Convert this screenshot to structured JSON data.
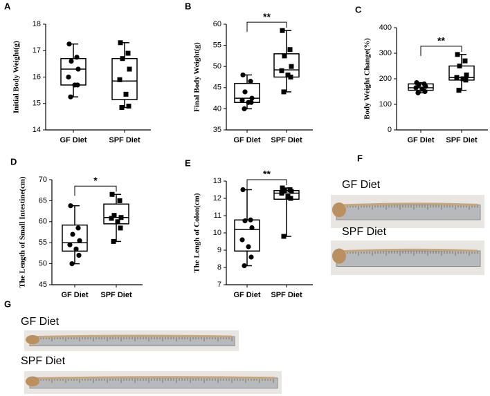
{
  "chart_data": [
    {
      "type": "box",
      "panel": "A",
      "y_label": "Initial Body Weight(g)",
      "categories": [
        "GF Diet",
        "SPF Diet"
      ],
      "ylim": [
        14,
        18
      ],
      "yticks": [
        14,
        15,
        16,
        17,
        18
      ],
      "boxes": [
        {
          "min": 15.25,
          "q1": 15.7,
          "median": 16.3,
          "q3": 16.7,
          "max": 17.25,
          "points": [
            17.25,
            16.75,
            16.6,
            16.3,
            16.0,
            15.7,
            15.7,
            15.25
          ]
        },
        {
          "min": 14.85,
          "q1": 15.15,
          "median": 15.85,
          "q3": 16.7,
          "max": 17.3,
          "points": [
            17.3,
            16.9,
            16.7,
            16.3,
            15.9,
            15.35,
            14.9,
            14.85
          ]
        }
      ]
    },
    {
      "type": "box",
      "panel": "B",
      "y_label": "Final Body Weight(g)",
      "categories": [
        "GF Diet",
        "SPF Diet"
      ],
      "ylim": [
        35,
        60
      ],
      "yticks": [
        35,
        40,
        45,
        50,
        55,
        60
      ],
      "significance": "**",
      "boxes": [
        {
          "min": 40,
          "q1": 41.5,
          "median": 42.5,
          "q3": 46,
          "max": 48,
          "points": [
            48,
            46.5,
            44,
            42.5,
            42,
            41.5,
            41.5,
            40
          ]
        },
        {
          "min": 44,
          "q1": 47.5,
          "median": 49.2,
          "q3": 53,
          "max": 58.5,
          "points": [
            58.5,
            54,
            52.5,
            50,
            49,
            48,
            47.5,
            44
          ]
        }
      ]
    },
    {
      "type": "box",
      "panel": "C",
      "y_label": "Body Weight Change(%)",
      "categories": [
        "GF Diet",
        "SPF Diet"
      ],
      "ylim": [
        0,
        400
      ],
      "yticks": [
        0,
        100,
        200,
        300,
        400
      ],
      "significance": "**",
      "boxes": [
        {
          "min": 145,
          "q1": 155,
          "median": 165,
          "q3": 180,
          "max": 185,
          "points": [
            185,
            180,
            175,
            170,
            165,
            160,
            150,
            145
          ]
        },
        {
          "min": 155,
          "q1": 195,
          "median": 205,
          "q3": 250,
          "max": 295,
          "points": [
            295,
            270,
            250,
            215,
            205,
            200,
            195,
            155
          ]
        }
      ]
    },
    {
      "type": "box",
      "panel": "D",
      "y_label": "The Length of Small Intestine(cm)",
      "categories": [
        "GF Diet",
        "SPF Diet"
      ],
      "ylim": [
        45,
        70
      ],
      "yticks": [
        45,
        50,
        55,
        60,
        65,
        70
      ],
      "significance": "*",
      "boxes": [
        {
          "min": 50,
          "q1": 53,
          "median": 55,
          "q3": 59.2,
          "max": 63.8,
          "points": [
            63.8,
            58.5,
            57,
            55.5,
            54.5,
            53.5,
            52,
            50
          ]
        },
        {
          "min": 55.3,
          "q1": 59.5,
          "median": 61,
          "q3": 64.2,
          "max": 66.5,
          "points": [
            66.5,
            65,
            61.5,
            61,
            60.8,
            60,
            58.5,
            55.3
          ]
        }
      ]
    },
    {
      "type": "box",
      "panel": "E",
      "y_label": "The Lengh of Colon(cm)",
      "categories": [
        "GF Diet",
        "SPF Diet"
      ],
      "ylim": [
        7,
        13
      ],
      "yticks": [
        7,
        8,
        9,
        10,
        11,
        12,
        13
      ],
      "significance": "**",
      "boxes": [
        {
          "min": 8.1,
          "q1": 8.95,
          "median": 10.2,
          "q3": 10.75,
          "max": 12.5,
          "points": [
            12.5,
            10.75,
            10.7,
            10.3,
            9.6,
            9.2,
            8.6,
            8.1
          ]
        },
        {
          "min": 9.8,
          "q1": 11.95,
          "median": 12.3,
          "q3": 12.45,
          "max": 12.6,
          "points": [
            12.6,
            12.5,
            12.45,
            12.4,
            12.3,
            12.1,
            12.0,
            9.8
          ]
        }
      ]
    }
  ],
  "photos": [
    {
      "panel": "F",
      "labels": [
        "GF Diet",
        "SPF Diet"
      ]
    },
    {
      "panel": "G",
      "labels": [
        "GF Diet",
        "SPF Diet"
      ]
    }
  ]
}
